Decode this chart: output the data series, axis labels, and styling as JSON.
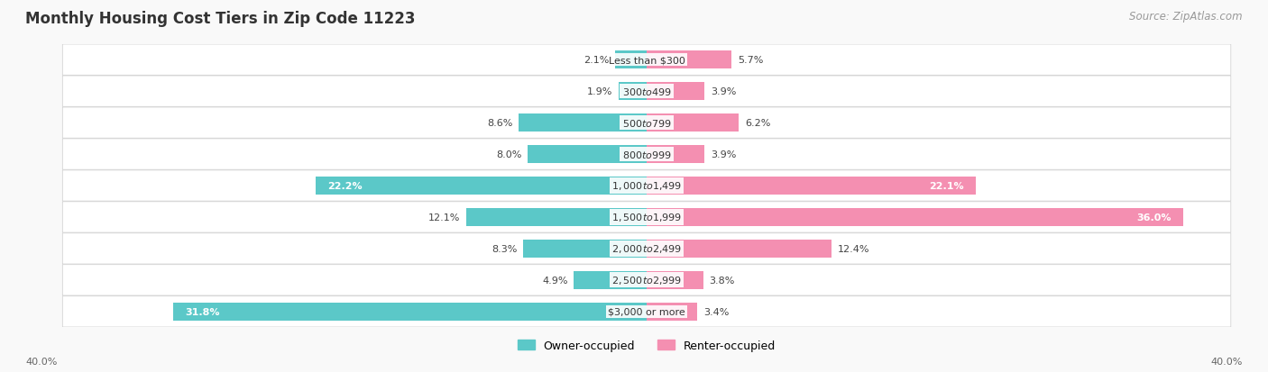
{
  "title": "Monthly Housing Cost Tiers in Zip Code 11223",
  "source": "Source: ZipAtlas.com",
  "categories": [
    "Less than $300",
    "$300 to $499",
    "$500 to $799",
    "$800 to $999",
    "$1,000 to $1,499",
    "$1,500 to $1,999",
    "$2,000 to $2,499",
    "$2,500 to $2,999",
    "$3,000 or more"
  ],
  "owner_values": [
    2.1,
    1.9,
    8.6,
    8.0,
    22.2,
    12.1,
    8.3,
    4.9,
    31.8
  ],
  "renter_values": [
    5.7,
    3.9,
    6.2,
    3.9,
    22.1,
    36.0,
    12.4,
    3.8,
    3.4
  ],
  "owner_color": "#5bc8c8",
  "renter_color": "#f48fb1",
  "axis_max": 40.0,
  "title_fontsize": 12,
  "source_fontsize": 8.5,
  "label_fontsize": 8.0,
  "category_fontsize": 8.0,
  "legend_fontsize": 9,
  "axis_label_fontsize": 8
}
